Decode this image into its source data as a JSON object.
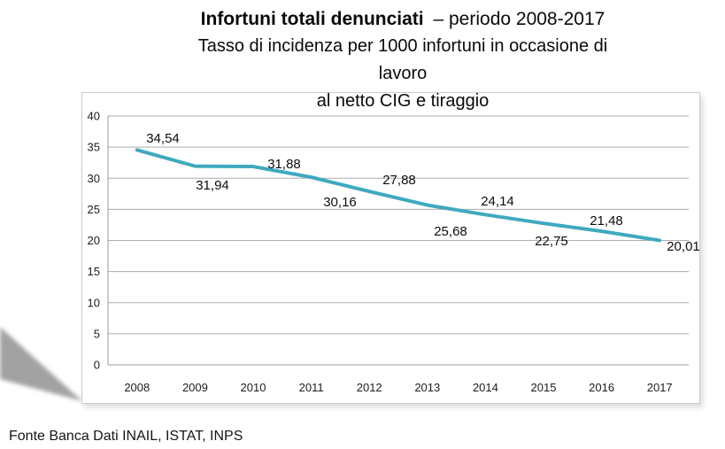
{
  "page": {
    "source_note": "Fonte Banca Dati INAIL, ISTAT, INPS"
  },
  "chart_data": {
    "type": "line",
    "title_bold": "Infortuni totali denunciati",
    "title_rest": "– periodo 2008-2017",
    "subtitle_lines": [
      "Tasso di incidenza per 1000 infortuni in occasione di",
      "lavoro",
      "al netto CIG e tiraggio"
    ],
    "categories": [
      "2008",
      "2009",
      "2010",
      "2011",
      "2012",
      "2013",
      "2014",
      "2015",
      "2016",
      "2017"
    ],
    "values": [
      34.54,
      31.94,
      31.88,
      30.16,
      27.88,
      25.68,
      24.14,
      22.75,
      21.48,
      20.01
    ],
    "value_labels": [
      "34,54",
      "31,94",
      "31,88",
      "30,16",
      "27,88",
      "25,68",
      "24,14",
      "22,75",
      "21,48",
      "20,01"
    ],
    "ylim": [
      0,
      40
    ],
    "y_ticks": [
      0,
      5,
      10,
      15,
      20,
      25,
      30,
      35,
      40
    ],
    "grid": true,
    "legend": "none",
    "line_color": "#3FA9BF",
    "grid_color": "#ADADAD",
    "axis_color": "#9B9B9B",
    "xlabel": "",
    "ylabel": ""
  }
}
